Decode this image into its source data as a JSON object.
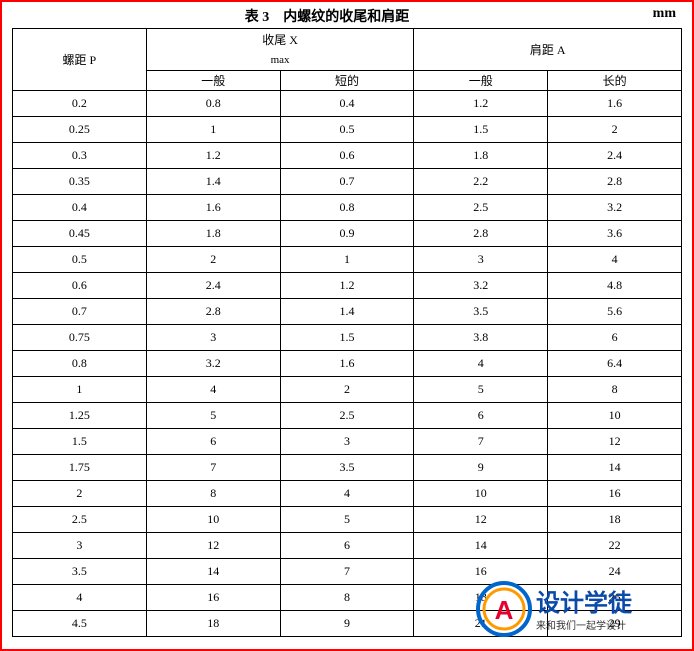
{
  "title": "表 3 内螺纹的收尾和肩距",
  "unit": "mm",
  "columns": {
    "p": "螺距 P",
    "x": "收尾 X",
    "x_sub": "max",
    "a": "肩距 A",
    "x1": "一般",
    "x2": "短的",
    "a1": "一般",
    "a2": "长的"
  },
  "rows": [
    {
      "p": "0.2",
      "x1": "0.8",
      "x2": "0.4",
      "a1": "1.2",
      "a2": "1.6"
    },
    {
      "p": "0.25",
      "x1": "1",
      "x2": "0.5",
      "a1": "1.5",
      "a2": "2"
    },
    {
      "p": "0.3",
      "x1": "1.2",
      "x2": "0.6",
      "a1": "1.8",
      "a2": "2.4"
    },
    {
      "p": "0.35",
      "x1": "1.4",
      "x2": "0.7",
      "a1": "2.2",
      "a2": "2.8"
    },
    {
      "p": "0.4",
      "x1": "1.6",
      "x2": "0.8",
      "a1": "2.5",
      "a2": "3.2"
    },
    {
      "p": "0.45",
      "x1": "1.8",
      "x2": "0.9",
      "a1": "2.8",
      "a2": "3.6"
    },
    {
      "p": "0.5",
      "x1": "2",
      "x2": "1",
      "a1": "3",
      "a2": "4"
    },
    {
      "p": "0.6",
      "x1": "2.4",
      "x2": "1.2",
      "a1": "3.2",
      "a2": "4.8"
    },
    {
      "p": "0.7",
      "x1": "2.8",
      "x2": "1.4",
      "a1": "3.5",
      "a2": "5.6"
    },
    {
      "p": "0.75",
      "x1": "3",
      "x2": "1.5",
      "a1": "3.8",
      "a2": "6"
    },
    {
      "p": "0.8",
      "x1": "3.2",
      "x2": "1.6",
      "a1": "4",
      "a2": "6.4"
    },
    {
      "p": "1",
      "x1": "4",
      "x2": "2",
      "a1": "5",
      "a2": "8"
    },
    {
      "p": "1.25",
      "x1": "5",
      "x2": "2.5",
      "a1": "6",
      "a2": "10"
    },
    {
      "p": "1.5",
      "x1": "6",
      "x2": "3",
      "a1": "7",
      "a2": "12"
    },
    {
      "p": "1.75",
      "x1": "7",
      "x2": "3.5",
      "a1": "9",
      "a2": "14"
    },
    {
      "p": "2",
      "x1": "8",
      "x2": "4",
      "a1": "10",
      "a2": "16"
    },
    {
      "p": "2.5",
      "x1": "10",
      "x2": "5",
      "a1": "12",
      "a2": "18"
    },
    {
      "p": "3",
      "x1": "12",
      "x2": "6",
      "a1": "14",
      "a2": "22"
    },
    {
      "p": "3.5",
      "x1": "14",
      "x2": "7",
      "a1": "16",
      "a2": "24"
    },
    {
      "p": "4",
      "x1": "16",
      "x2": "8",
      "a1": "18",
      "a2": "26"
    },
    {
      "p": "4.5",
      "x1": "18",
      "x2": "9",
      "a1": "21",
      "a2": "29"
    }
  ],
  "watermark": {
    "brand_main": "设计学徒",
    "brand_sub": "来和我们一起学设计",
    "logo_letter": "A",
    "ring_outer": "#0066cc",
    "ring_mid": "#ff9900",
    "logo_red": "#e6002d",
    "text_color": "#0a4aa8"
  },
  "style": {
    "border_color": "#000000",
    "outer_border": "#ff0000",
    "font_family": "SimSun",
    "cell_fontsize": 12,
    "title_fontsize": 14,
    "background": "#ffffff"
  }
}
